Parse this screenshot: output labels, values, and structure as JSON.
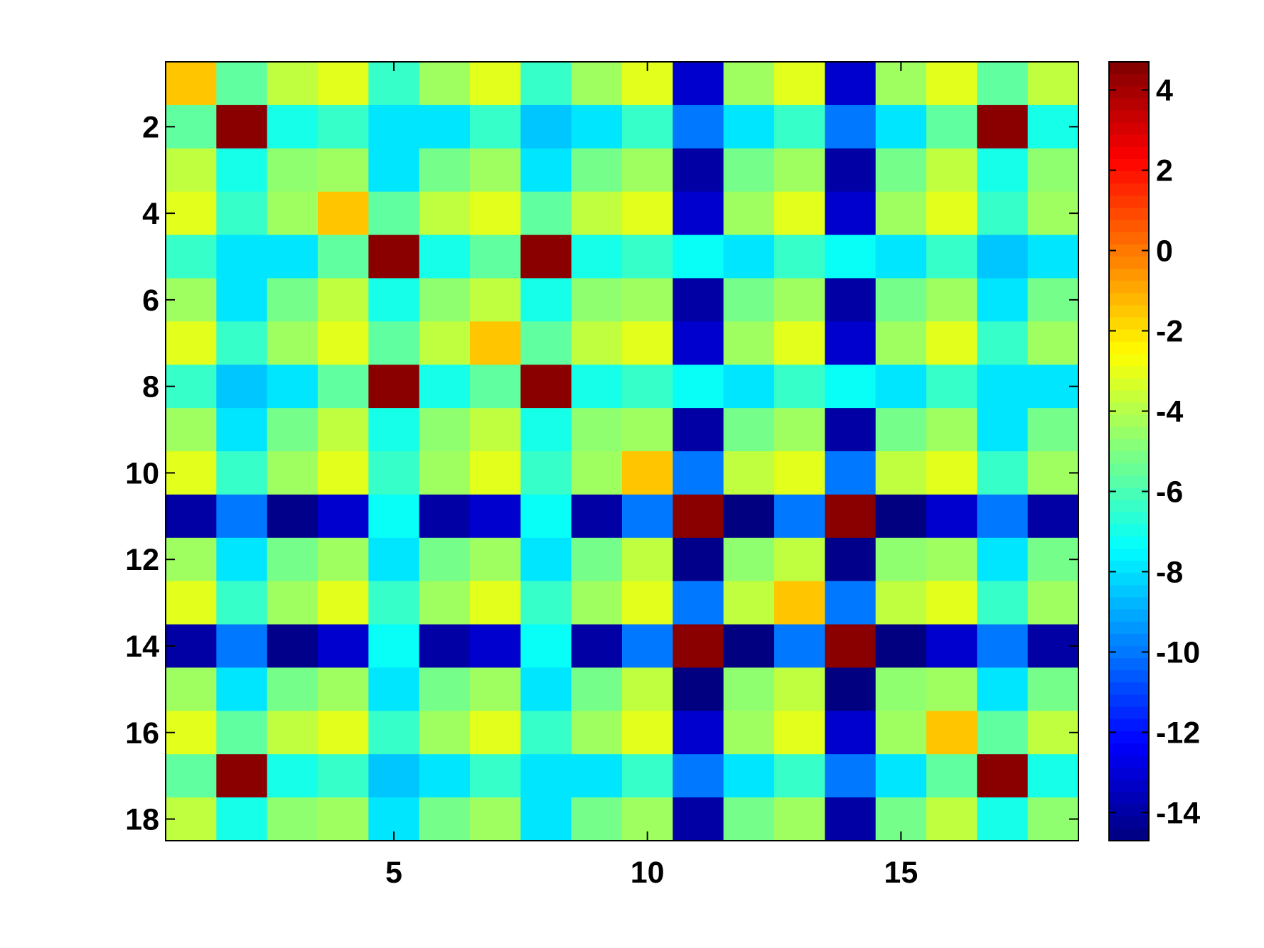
{
  "chart_data": {
    "type": "heatmap",
    "title": "",
    "xlabel": "",
    "ylabel": "",
    "x": [
      1,
      2,
      3,
      4,
      5,
      6,
      7,
      8,
      9,
      10,
      11,
      12,
      13,
      14,
      15,
      16,
      17,
      18
    ],
    "y": [
      1,
      2,
      3,
      4,
      5,
      6,
      7,
      8,
      9,
      10,
      11,
      12,
      13,
      14,
      15,
      16,
      17,
      18
    ],
    "xlim": [
      0.5,
      18.5
    ],
    "ylim": [
      0.5,
      18.5
    ],
    "y_direction": "reversed",
    "x_ticks": [
      5,
      10,
      15
    ],
    "x_tick_labels": [
      "5",
      "10",
      "15"
    ],
    "y_ticks": [
      2,
      4,
      6,
      8,
      10,
      12,
      14,
      16,
      18
    ],
    "y_tick_labels": [
      "2",
      "4",
      "6",
      "8",
      "10",
      "12",
      "14",
      "16",
      "18"
    ],
    "colormap": "jet",
    "clim": [
      -14.7,
      4.7
    ],
    "colorbar": {
      "position": "right",
      "ticks": [
        4,
        2,
        0,
        -2,
        -4,
        -6,
        -8,
        -10,
        -12,
        -14
      ],
      "tick_labels": [
        "4",
        "2",
        "0",
        "-2",
        "-4",
        "-6",
        "-8",
        "-10",
        "-12",
        "-14"
      ]
    },
    "grid": false,
    "values": [
      [
        -1.5,
        -5.6,
        -3.8,
        -3.1,
        -6.4,
        -4.4,
        -3.1,
        -6.4,
        -4.4,
        -3.1,
        -13.2,
        -4.4,
        -3.1,
        -13.2,
        -4.4,
        -3.1,
        -5.6,
        -3.8
      ],
      [
        -5.6,
        4.5,
        -7.0,
        -6.4,
        -7.9,
        -7.9,
        -6.4,
        -8.5,
        -7.9,
        -6.4,
        -10.0,
        -7.9,
        -6.4,
        -10.0,
        -7.9,
        -5.6,
        4.5,
        -7.0
      ],
      [
        -3.8,
        -7.0,
        -4.7,
        -4.4,
        -7.9,
        -5.2,
        -4.4,
        -7.9,
        -5.2,
        -4.4,
        -14.0,
        -5.2,
        -4.4,
        -14.0,
        -5.2,
        -3.8,
        -7.0,
        -4.7
      ],
      [
        -3.1,
        -6.4,
        -4.4,
        -1.5,
        -5.6,
        -3.8,
        -3.1,
        -5.6,
        -3.8,
        -3.1,
        -13.2,
        -4.4,
        -3.1,
        -13.2,
        -4.4,
        -3.1,
        -6.4,
        -4.4
      ],
      [
        -6.4,
        -7.9,
        -7.9,
        -5.6,
        4.5,
        -7.0,
        -5.6,
        4.5,
        -7.0,
        -6.4,
        -7.3,
        -7.9,
        -6.4,
        -7.3,
        -7.9,
        -6.4,
        -8.5,
        -7.9
      ],
      [
        -4.4,
        -7.9,
        -5.2,
        -3.8,
        -7.0,
        -4.7,
        -3.8,
        -7.0,
        -4.7,
        -4.4,
        -14.0,
        -5.2,
        -4.4,
        -14.0,
        -5.2,
        -4.4,
        -7.9,
        -5.2
      ],
      [
        -3.1,
        -6.4,
        -4.4,
        -3.1,
        -5.6,
        -3.8,
        -1.5,
        -5.6,
        -3.8,
        -3.1,
        -13.2,
        -4.4,
        -3.1,
        -13.2,
        -4.4,
        -3.1,
        -6.4,
        -4.4
      ],
      [
        -6.4,
        -8.5,
        -7.9,
        -5.6,
        4.5,
        -7.0,
        -5.6,
        4.5,
        -7.0,
        -6.4,
        -7.3,
        -7.9,
        -6.4,
        -7.3,
        -7.9,
        -6.4,
        -7.9,
        -7.9
      ],
      [
        -4.4,
        -7.9,
        -5.2,
        -3.8,
        -7.0,
        -4.7,
        -3.8,
        -7.0,
        -4.7,
        -4.4,
        -14.0,
        -5.2,
        -4.4,
        -14.0,
        -5.2,
        -4.4,
        -7.9,
        -5.2
      ],
      [
        -3.1,
        -6.4,
        -4.4,
        -3.1,
        -6.4,
        -4.4,
        -3.1,
        -6.4,
        -4.4,
        -1.5,
        -10.0,
        -3.8,
        -3.1,
        -10.0,
        -3.8,
        -3.1,
        -6.4,
        -4.4
      ],
      [
        -14.0,
        -10.0,
        -14.5,
        -13.2,
        -7.3,
        -14.0,
        -13.2,
        -7.3,
        -14.0,
        -10.0,
        4.5,
        -14.8,
        -10.0,
        4.5,
        -14.8,
        -13.2,
        -10.0,
        -14.0
      ],
      [
        -4.4,
        -7.9,
        -5.2,
        -4.4,
        -7.9,
        -5.2,
        -4.4,
        -7.9,
        -5.2,
        -3.8,
        -14.5,
        -4.7,
        -3.8,
        -14.5,
        -4.7,
        -4.4,
        -7.9,
        -5.2
      ],
      [
        -3.1,
        -6.4,
        -4.4,
        -3.1,
        -6.4,
        -4.4,
        -3.1,
        -6.4,
        -4.4,
        -3.1,
        -10.0,
        -3.8,
        -1.5,
        -10.0,
        -3.8,
        -3.1,
        -6.4,
        -4.4
      ],
      [
        -14.0,
        -10.0,
        -14.5,
        -13.2,
        -7.3,
        -14.0,
        -13.2,
        -7.3,
        -14.0,
        -10.0,
        4.5,
        -14.8,
        -10.0,
        4.5,
        -14.8,
        -13.2,
        -10.0,
        -14.0
      ],
      [
        -4.4,
        -7.9,
        -5.2,
        -4.4,
        -7.9,
        -5.2,
        -4.4,
        -7.9,
        -5.2,
        -3.8,
        -14.8,
        -4.7,
        -3.8,
        -14.8,
        -4.7,
        -4.4,
        -7.9,
        -5.2
      ],
      [
        -3.1,
        -5.6,
        -3.8,
        -3.1,
        -6.4,
        -4.4,
        -3.1,
        -6.4,
        -4.4,
        -3.1,
        -13.2,
        -4.4,
        -3.1,
        -13.2,
        -4.4,
        -1.5,
        -5.6,
        -3.8
      ],
      [
        -5.6,
        4.5,
        -7.0,
        -6.4,
        -8.5,
        -7.9,
        -6.4,
        -7.9,
        -7.9,
        -6.4,
        -10.0,
        -7.9,
        -6.4,
        -10.0,
        -7.9,
        -5.6,
        4.5,
        -7.0
      ],
      [
        -3.8,
        -7.0,
        -4.7,
        -4.4,
        -7.9,
        -5.2,
        -4.4,
        -7.9,
        -5.2,
        -4.4,
        -14.0,
        -5.2,
        -4.4,
        -14.0,
        -5.2,
        -3.8,
        -7.0,
        -4.7
      ]
    ]
  }
}
